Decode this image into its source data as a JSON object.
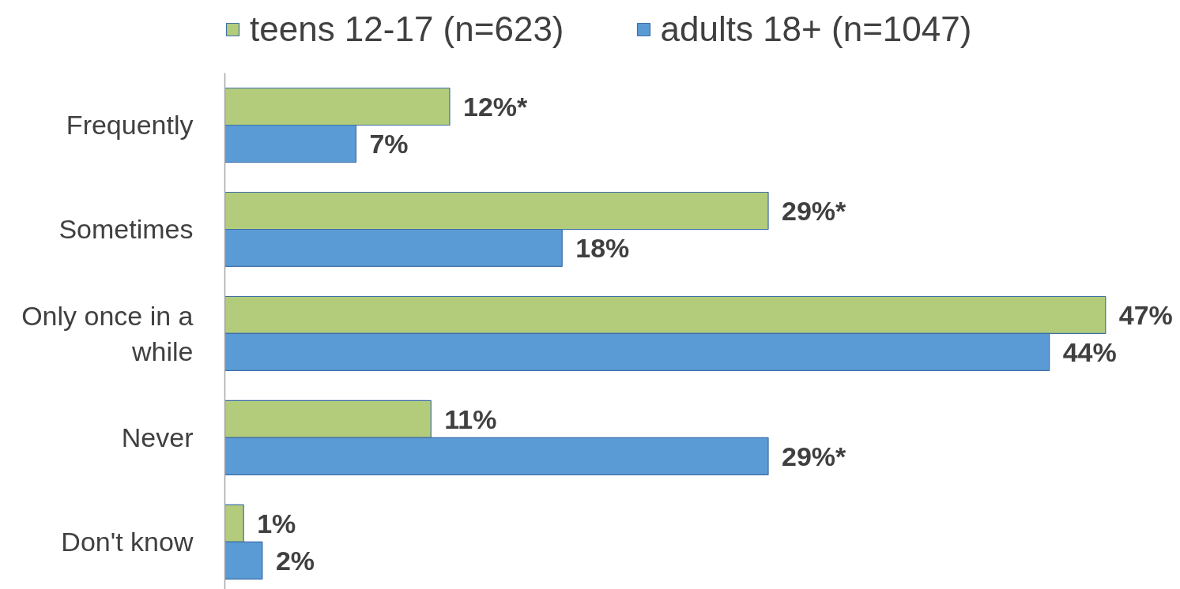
{
  "chart_data": {
    "type": "bar",
    "orientation": "horizontal",
    "legend": "top",
    "categories": [
      "Frequently",
      "Sometimes",
      "Only once in a while",
      "Never",
      "Don't know"
    ],
    "series": [
      {
        "name": "teens 12-17 (n=623)",
        "color": "#b3cc7c",
        "values": [
          12,
          29,
          47,
          11,
          1
        ],
        "value_labels": [
          "12%*",
          "29%*",
          "47%",
          "11%",
          "1%"
        ]
      },
      {
        "name": "adults 18+ (n=1047)",
        "color": "#5b9bd5",
        "values": [
          7,
          18,
          44,
          29,
          2
        ],
        "value_labels": [
          "7%",
          "18%",
          "44%",
          "29%*",
          "2%"
        ]
      }
    ]
  }
}
